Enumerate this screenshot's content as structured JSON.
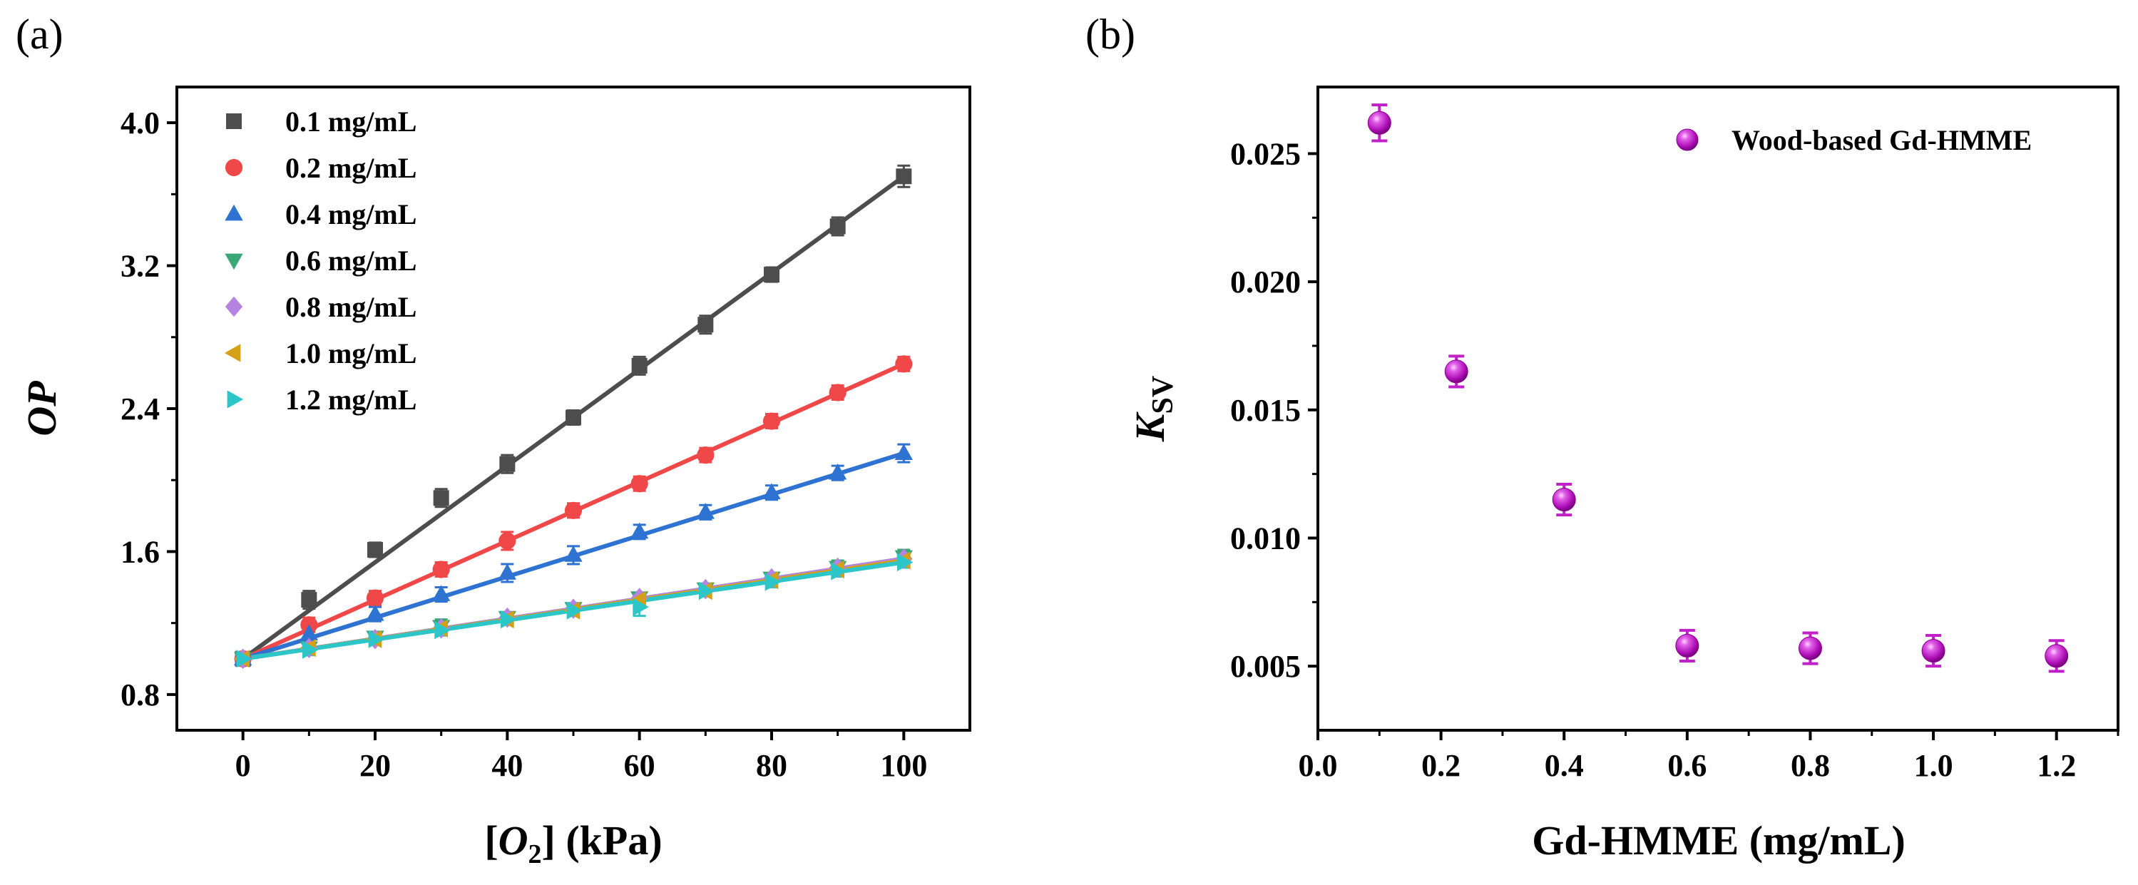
{
  "chart_data": [
    {
      "panel_label": "(a)",
      "type": "scatter",
      "xlabel_parts": [
        "[",
        "O",
        "2",
        "] (kPa)"
      ],
      "ylabel": "OP",
      "xlim": [
        -10,
        110
      ],
      "ylim": [
        0.6,
        4.2
      ],
      "xticks": [
        0,
        20,
        40,
        60,
        80,
        100
      ],
      "yticks": [
        0.8,
        1.6,
        2.4,
        3.2,
        4.0
      ],
      "xtick_labels": [
        "0",
        "20",
        "40",
        "60",
        "80",
        "100"
      ],
      "ytick_labels": [
        "0.8",
        "1.6",
        "2.4",
        "3.2",
        "4.0"
      ],
      "x": [
        0,
        10,
        20,
        30,
        40,
        50,
        60,
        70,
        80,
        90,
        100
      ],
      "legend_position": "top-left",
      "series": [
        {
          "name": "0.1 mg/mL",
          "color": "#4d4d4d",
          "marker": "square",
          "values": [
            1.0,
            1.33,
            1.61,
            1.9,
            2.09,
            2.35,
            2.64,
            2.87,
            3.15,
            3.42,
            3.7
          ],
          "errors": [
            0.03,
            0.05,
            0.04,
            0.05,
            0.05,
            0.04,
            0.05,
            0.05,
            0.04,
            0.05,
            0.06
          ],
          "fit": [
            1.0,
            3.7
          ]
        },
        {
          "name": "0.2 mg/mL",
          "color": "#f04848",
          "marker": "circle",
          "values": [
            1.0,
            1.19,
            1.34,
            1.5,
            1.66,
            1.83,
            1.98,
            2.14,
            2.33,
            2.49,
            2.65
          ],
          "errors": [
            0.03,
            0.04,
            0.04,
            0.04,
            0.05,
            0.04,
            0.04,
            0.04,
            0.04,
            0.04,
            0.04
          ],
          "fit": [
            1.0,
            2.65
          ]
        },
        {
          "name": "0.4 mg/mL",
          "color": "#2e72d2",
          "marker": "triangle-up",
          "values": [
            1.0,
            1.14,
            1.25,
            1.36,
            1.48,
            1.58,
            1.71,
            1.82,
            1.93,
            2.04,
            2.15
          ],
          "errors": [
            0.03,
            0.04,
            0.04,
            0.04,
            0.05,
            0.05,
            0.04,
            0.04,
            0.04,
            0.04,
            0.05
          ],
          "fit": [
            1.0,
            2.15
          ]
        },
        {
          "name": "0.6 mg/mL",
          "color": "#3aa876",
          "marker": "triangle-down",
          "values": [
            1.0,
            1.06,
            1.12,
            1.18,
            1.23,
            1.28,
            1.34,
            1.39,
            1.45,
            1.51,
            1.57
          ],
          "errors": [
            0.03,
            0.03,
            0.03,
            0.04,
            0.03,
            0.03,
            0.03,
            0.03,
            0.03,
            0.04,
            0.04
          ],
          "fit": [
            1.0,
            1.56
          ]
        },
        {
          "name": "0.8 mg/mL",
          "color": "#b583e0",
          "marker": "diamond",
          "values": [
            1.0,
            1.06,
            1.11,
            1.17,
            1.23,
            1.28,
            1.34,
            1.39,
            1.45,
            1.51,
            1.56
          ],
          "errors": [
            0.03,
            0.03,
            0.03,
            0.03,
            0.03,
            0.03,
            0.03,
            0.03,
            0.03,
            0.03,
            0.03
          ],
          "fit": [
            1.0,
            1.56
          ]
        },
        {
          "name": "1.0 mg/mL",
          "color": "#d4a017",
          "marker": "triangle-left",
          "values": [
            1.0,
            1.06,
            1.11,
            1.17,
            1.22,
            1.27,
            1.33,
            1.38,
            1.44,
            1.5,
            1.55
          ],
          "errors": [
            0.03,
            0.03,
            0.03,
            0.03,
            0.03,
            0.03,
            0.03,
            0.03,
            0.03,
            0.03,
            0.03
          ],
          "fit": [
            1.0,
            1.55
          ]
        },
        {
          "name": "1.2 mg/mL",
          "color": "#2cc6c8",
          "marker": "triangle-right",
          "values": [
            1.0,
            1.05,
            1.11,
            1.16,
            1.22,
            1.27,
            1.29,
            1.38,
            1.43,
            1.49,
            1.54
          ],
          "errors": [
            0.03,
            0.03,
            0.03,
            0.03,
            0.03,
            0.03,
            0.05,
            0.03,
            0.03,
            0.03,
            0.03
          ],
          "fit": [
            1.0,
            1.54
          ]
        }
      ]
    },
    {
      "panel_label": "(b)",
      "type": "scatter",
      "xlabel": "Gd-HMME (mg/mL)",
      "ylabel_main": "K",
      "ylabel_sub": "SV",
      "xlim": [
        0.0,
        1.3
      ],
      "ylim": [
        0.0025,
        0.0276
      ],
      "xticks": [
        0.0,
        0.2,
        0.4,
        0.6,
        0.8,
        1.0,
        1.2
      ],
      "yticks": [
        0.005,
        0.01,
        0.015,
        0.02,
        0.025
      ],
      "xtick_labels": [
        "0.0",
        "0.2",
        "0.4",
        "0.6",
        "0.8",
        "1.0",
        "1.2"
      ],
      "ytick_labels": [
        "0.005",
        "0.010",
        "0.015",
        "0.020",
        "0.025"
      ],
      "legend_position": "top-right",
      "series": [
        {
          "name": "Wood-based Gd-HMME",
          "color": "#c020c8",
          "marker": "sphere",
          "x": [
            0.1,
            0.225,
            0.4,
            0.6,
            0.8,
            1.0,
            1.2
          ],
          "values": [
            0.0262,
            0.0165,
            0.0115,
            0.0058,
            0.0057,
            0.0056,
            0.0054
          ],
          "errors": [
            0.0007,
            0.0006,
            0.0006,
            0.0006,
            0.0006,
            0.0006,
            0.0006
          ]
        }
      ]
    }
  ]
}
